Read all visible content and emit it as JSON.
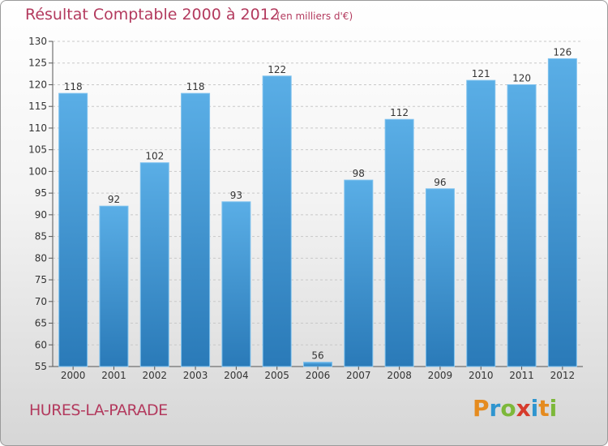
{
  "title": "Résultat Comptable 2000 à 2012",
  "subtitle": "(en milliers d'€)",
  "commune": "HURES-LA-PARADE",
  "logo": {
    "letters": [
      "P",
      "r",
      "o",
      "x",
      "i",
      "t",
      "i"
    ],
    "colors": [
      "#e58b1f",
      "#2f95cf",
      "#7db83a",
      "#d63b2c",
      "#2f95cf",
      "#e58b1f",
      "#7db83a"
    ]
  },
  "colors": {
    "bar_top": "#5aaee6",
    "bar_bottom": "#2a7ab8",
    "title": "#b33a5e"
  },
  "chart_data": {
    "type": "bar",
    "title": "Résultat Comptable 2000 à 2012",
    "categories": [
      "2000",
      "2001",
      "2002",
      "2003",
      "2004",
      "2005",
      "2006",
      "2007",
      "2008",
      "2009",
      "2010",
      "2011",
      "2012"
    ],
    "values": [
      118,
      92,
      102,
      118,
      93,
      122,
      56,
      98,
      112,
      96,
      121,
      120,
      126
    ],
    "ylim": [
      55,
      130
    ],
    "yticks": [
      55,
      60,
      65,
      70,
      75,
      80,
      85,
      90,
      95,
      100,
      105,
      110,
      115,
      120,
      125,
      130
    ],
    "grid": true,
    "xlabel": "",
    "ylabel": ""
  }
}
